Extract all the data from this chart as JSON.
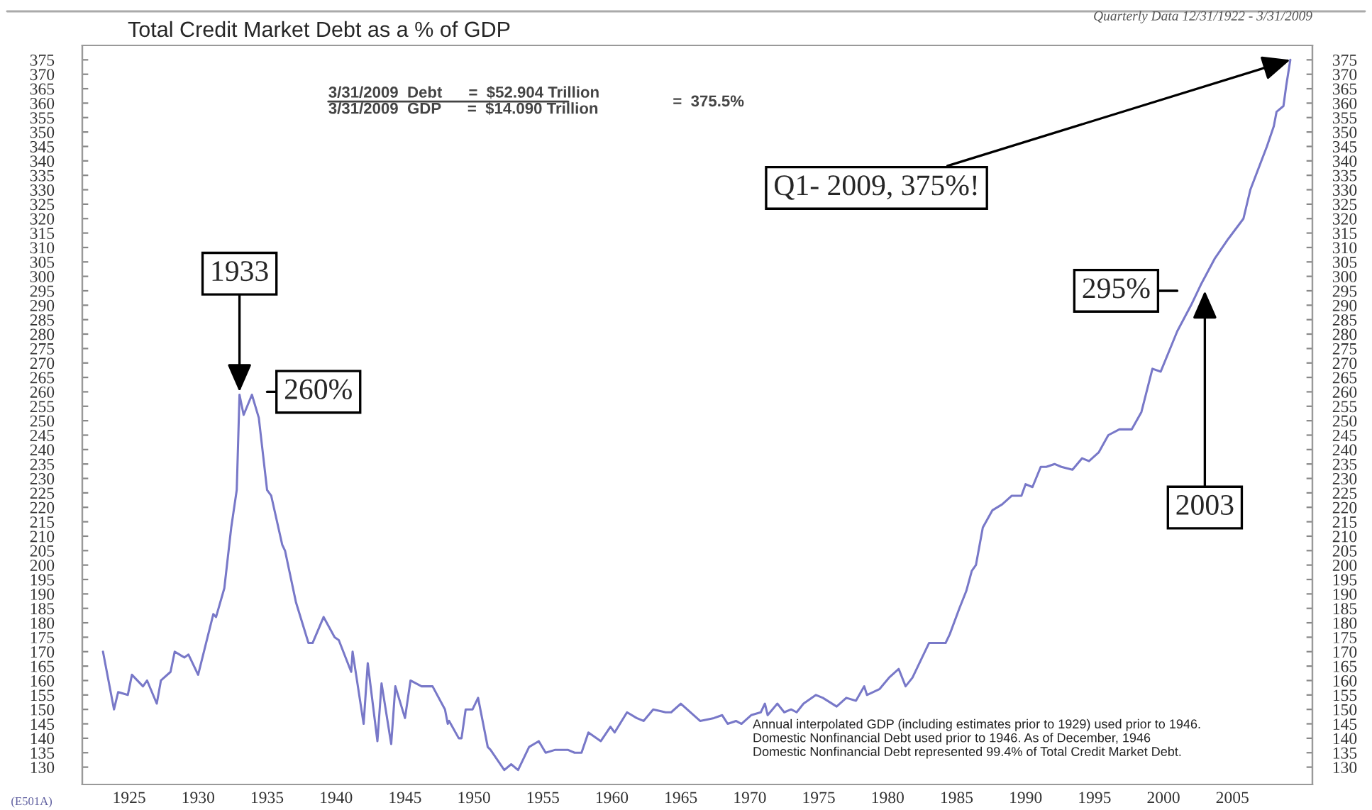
{
  "chart_data": {
    "type": "line",
    "title": "Total Credit Market Debt as a % of GDP",
    "subtitle": "Quarterly Data 12/31/1922 - 3/31/2009",
    "x": [
      1923.1,
      1923.9,
      1924.2,
      1924.9,
      1925.2,
      1926.0,
      1926.3,
      1927.0,
      1927.3,
      1928.0,
      1928.3,
      1929.0,
      1929.3,
      1930.0,
      1931.1,
      1931.3,
      1931.9,
      1932.4,
      1932.8,
      1933.0,
      1933.3,
      1933.9,
      1934.4,
      1935.0,
      1935.3,
      1936.1,
      1936.3,
      1937.1,
      1938.0,
      1938.3,
      1939.1,
      1939.9,
      1940.2,
      1941.1,
      1941.2,
      1942.0,
      1942.3,
      1943.0,
      1943.3,
      1944.0,
      1944.3,
      1945.0,
      1945.4,
      1946.2,
      1947.0,
      1947.9,
      1948.1,
      1948.2,
      1948.9,
      1949.1,
      1949.4,
      1949.9,
      1950.3,
      1951.0,
      1951.2,
      1952.2,
      1952.7,
      1953.2,
      1954.0,
      1954.7,
      1955.2,
      1955.9,
      1956.8,
      1957.3,
      1957.8,
      1958.3,
      1959.2,
      1959.9,
      1960.2,
      1961.1,
      1961.8,
      1962.3,
      1963.0,
      1963.9,
      1964.3,
      1965.0,
      1966.4,
      1967.4,
      1968.0,
      1968.4,
      1969.0,
      1969.4,
      1970.1,
      1970.8,
      1971.1,
      1971.3,
      1972.0,
      1972.5,
      1973.0,
      1973.4,
      1973.9,
      1974.8,
      1975.3,
      1976.3,
      1977.0,
      1977.7,
      1978.3,
      1978.5,
      1979.4,
      1980.1,
      1980.8,
      1981.3,
      1981.8,
      1982.5,
      1983.0,
      1984.2,
      1984.5,
      1985.2,
      1985.7,
      1986.1,
      1986.4,
      1986.9,
      1987.6,
      1988.3,
      1989.0,
      1989.7,
      1990.0,
      1990.5,
      1991.1,
      1991.5,
      1992.1,
      1992.6,
      1993.4,
      1994.1,
      1994.6,
      1995.3,
      1996.0,
      1996.8,
      1997.7,
      1998.4,
      1999.2,
      1999.8,
      2001.0,
      2002.0,
      2002.7,
      2003.7,
      2004.7,
      2005.8,
      2006.3,
      2007.5,
      2008.0,
      2008.2,
      2008.7,
      2008.9,
      2009.2
    ],
    "series": [
      {
        "color": "#7878c8",
        "values": [
          170,
          150,
          156,
          155,
          162,
          158,
          160,
          152,
          160,
          163,
          170,
          168,
          169,
          162,
          183,
          182,
          192,
          213,
          226,
          259,
          252,
          259,
          251,
          226,
          224,
          207,
          205,
          187,
          173,
          173,
          182,
          175,
          174,
          163,
          170,
          145,
          166,
          139,
          159,
          138,
          158,
          147,
          160,
          158,
          158,
          150,
          145,
          146,
          140,
          140,
          150,
          150,
          154,
          137,
          136,
          129,
          131,
          129,
          137,
          139,
          135,
          136,
          136,
          135,
          135,
          142,
          139,
          144,
          142,
          149,
          147,
          146,
          150,
          149,
          149,
          152,
          146,
          147,
          148,
          145,
          146,
          145,
          148,
          149,
          152,
          148,
          152,
          149,
          150,
          149,
          152,
          155,
          154,
          151,
          154,
          153,
          158,
          155,
          157,
          161,
          164,
          158,
          161,
          168,
          173,
          173,
          176,
          185,
          191,
          198,
          200,
          213,
          219,
          221,
          224,
          224,
          228,
          227,
          234,
          234,
          235,
          234,
          233,
          237,
          236,
          239,
          245,
          247,
          247,
          253,
          268,
          267,
          281,
          290,
          297,
          306,
          313,
          320,
          330,
          345,
          352,
          357,
          359,
          366,
          375
        ]
      }
    ],
    "xlim": [
      1921.6,
      2010.8
    ],
    "ylim": [
      124,
      380
    ],
    "y2lim": [
      124,
      380
    ],
    "xticks": [
      1925,
      1930,
      1935,
      1940,
      1945,
      1950,
      1955,
      1960,
      1965,
      1970,
      1975,
      1980,
      1985,
      1990,
      1995,
      2000,
      2005
    ],
    "yticks": [
      130,
      135,
      140,
      145,
      150,
      155,
      160,
      165,
      170,
      175,
      180,
      185,
      190,
      195,
      200,
      205,
      210,
      215,
      220,
      225,
      230,
      235,
      240,
      245,
      250,
      255,
      260,
      265,
      270,
      275,
      280,
      285,
      290,
      295,
      300,
      305,
      310,
      315,
      320,
      325,
      330,
      335,
      340,
      345,
      350,
      355,
      360,
      365,
      370,
      375
    ],
    "y2ticks": [
      130,
      135,
      140,
      145,
      150,
      155,
      160,
      165,
      170,
      175,
      180,
      185,
      190,
      195,
      200,
      205,
      210,
      215,
      220,
      225,
      230,
      235,
      240,
      245,
      250,
      255,
      260,
      265,
      270,
      275,
      280,
      285,
      290,
      295,
      300,
      305,
      310,
      315,
      320,
      325,
      330,
      335,
      340,
      345,
      350,
      355,
      360,
      365,
      370,
      375
    ],
    "grid": false,
    "legend": false,
    "marker": "none",
    "line_style": "solid",
    "annotations": [
      "3/31/2009  Debt      =  $52.904 Trillion",
      "3/31/2009  GDP      =  $14.090 Trillion",
      "=  375.5%",
      "Annual interpolated GDP (including estimates prior to 1929) used prior to 1946.\nDomestic Nonfinancial Debt used prior to 1946. As of December, 1946\nDomestic Nonfinancial Debt represented 99.4% of Total Credit Market Debt.",
      "(E501A)",
      {
        "text": "1933",
        "x": 1933,
        "y": 260
      },
      {
        "text": "260%",
        "x": 1933,
        "y": 260
      },
      {
        "text": "Q1- 2009, 375%!",
        "x": 2009.2,
        "y": 375
      },
      {
        "text": "295%",
        "x": 2003,
        "y": 295
      },
      {
        "text": "2003",
        "x": 2003,
        "y": 295
      }
    ]
  }
}
